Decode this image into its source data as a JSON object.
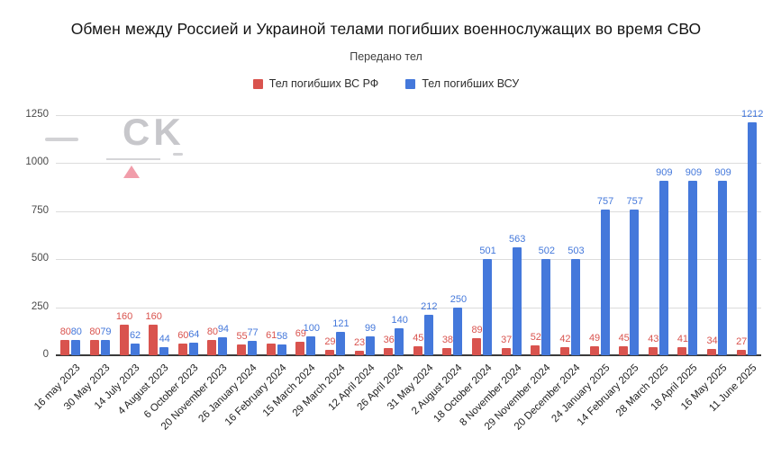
{
  "title": "Обмен между Россией и Украиной телами погибших военнослужащих во время СВО",
  "subtitle": "Передано тел",
  "watermark": {
    "text": "CK"
  },
  "colors": {
    "rf_red": "#d9534e",
    "vsu_blue": "#4478db",
    "grid": "#dcdcdc",
    "axis": "#3a3a3a"
  },
  "chart_data": {
    "type": "bar",
    "title": "Обмен между Россией и Украиной телами погибших военнослужащих во время СВО",
    "subtitle": "Передано тел",
    "xlabel": "",
    "ylabel": "",
    "ylim": [
      0,
      1250
    ],
    "yticks": [
      0,
      250,
      500,
      750,
      1000,
      1250
    ],
    "grid": true,
    "legend_position": "top",
    "categories": [
      "16 may 2023",
      "30 May 2023",
      "14 July 2023",
      "4 August 2023",
      "6 October 2023",
      "20 November 2023",
      "26 January 2024",
      "16 February 2024",
      "15 March 2024",
      "29 March 2024",
      "12 April 2024",
      "26 April 2024",
      "31 May 2024",
      "2 August 2024",
      "18 October 2024",
      "8 November 2024",
      "29 November 2024",
      "20 December 2024",
      "24 January 2025",
      "14 February 2025",
      "28 March 2025",
      "18 April 2025",
      "16 May 2025",
      "11 June 2025"
    ],
    "series": [
      {
        "name": "Тел погибших ВС РФ",
        "color": "#d9534e",
        "values": [
          80,
          80,
          160,
          160,
          60,
          80,
          55,
          61,
          69,
          29,
          23,
          36,
          45,
          38,
          89,
          37,
          52,
          42,
          49,
          45,
          43,
          41,
          34,
          27
        ]
      },
      {
        "name": "Тел погибших ВСУ",
        "color": "#4478db",
        "values": [
          80,
          79,
          62,
          44,
          64,
          94,
          77,
          58,
          100,
          121,
          99,
          140,
          212,
          250,
          501,
          563,
          502,
          503,
          757,
          757,
          909,
          909,
          909,
          1212
        ]
      }
    ]
  }
}
